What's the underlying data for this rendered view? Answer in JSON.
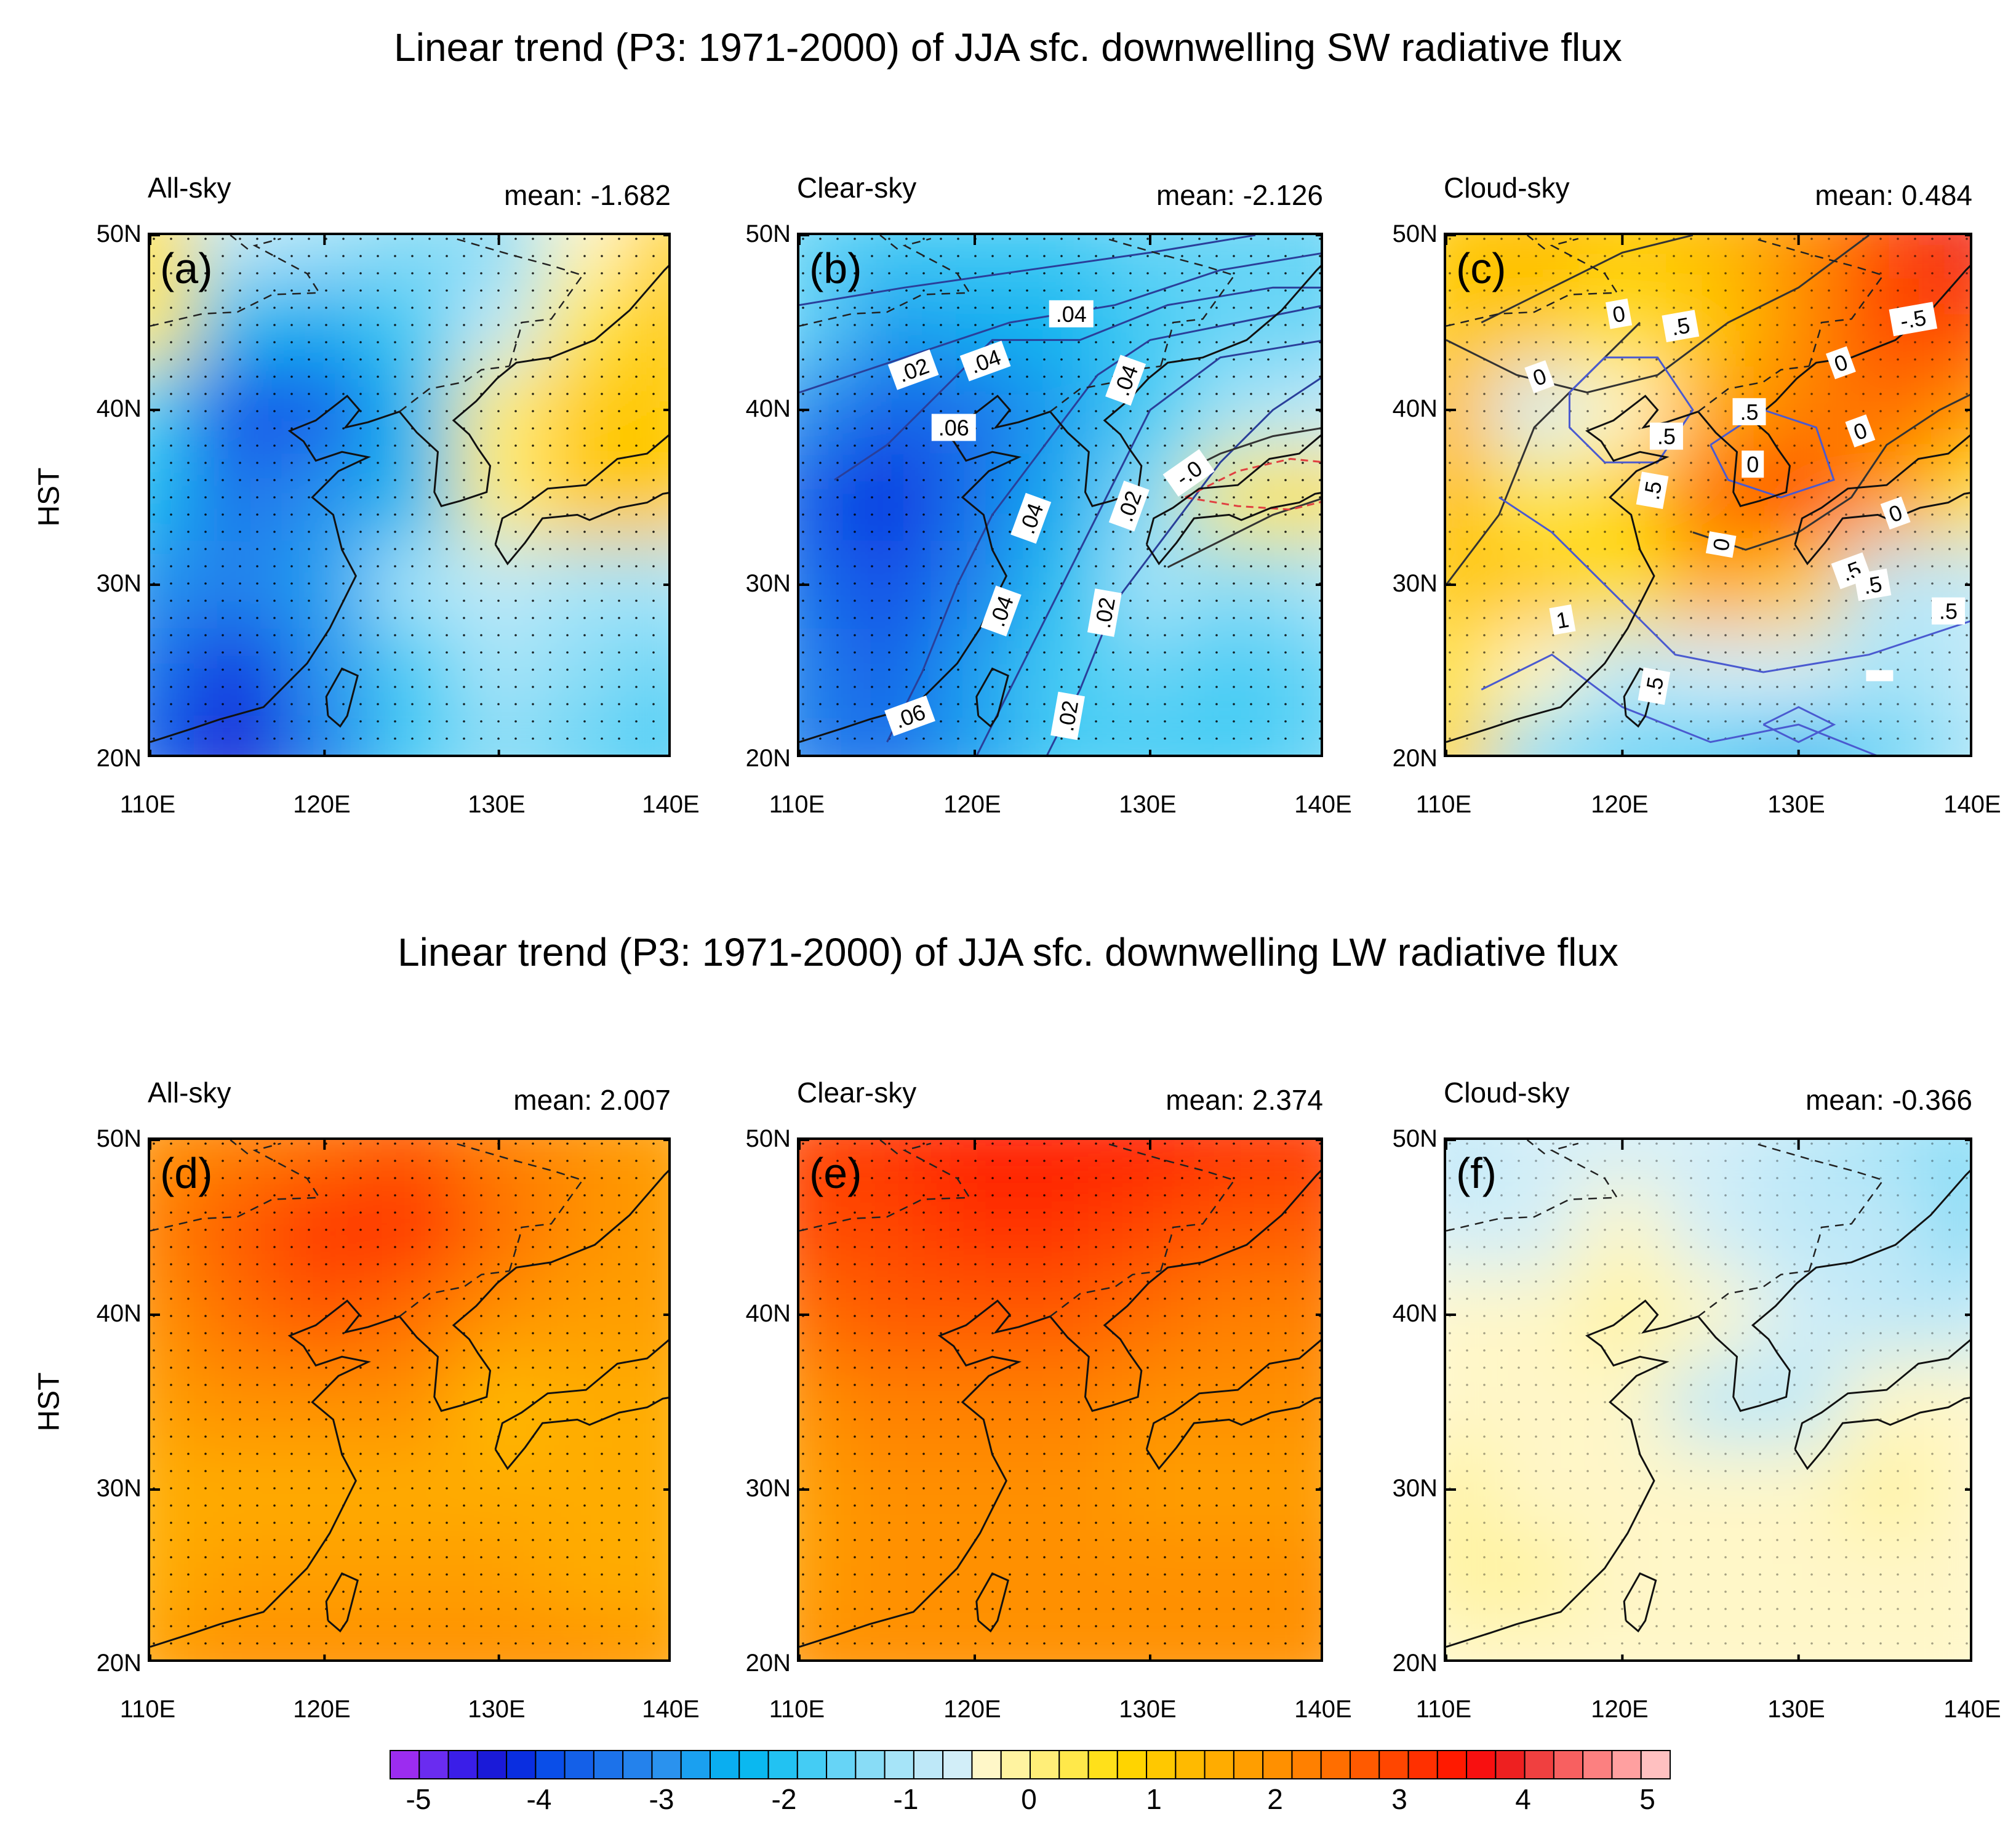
{
  "titles": {
    "sw": "Linear trend (P3: 1971-2000) of JJA sfc. downwelling SW radiative flux",
    "lw": "Linear trend (P3: 1971-2000) of JJA sfc. downwelling LW radiative flux"
  },
  "y_axis_title": "HST",
  "y_ticks": [
    "50N",
    "40N",
    "30N",
    "20N"
  ],
  "x_ticks": [
    "110E",
    "120E",
    "130E",
    "140E"
  ],
  "panels": [
    {
      "id": "a",
      "letter": "(a)",
      "name": "All-sky",
      "mean": "mean: -1.682"
    },
    {
      "id": "b",
      "letter": "(b)",
      "name": "Clear-sky",
      "mean": "mean: -2.126"
    },
    {
      "id": "c",
      "letter": "(c)",
      "name": "Cloud-sky",
      "mean": "mean: 0.484"
    },
    {
      "id": "d",
      "letter": "(d)",
      "name": "All-sky",
      "mean": "mean: 2.007"
    },
    {
      "id": "e",
      "letter": "(e)",
      "name": "Clear-sky",
      "mean": "mean: 2.374"
    },
    {
      "id": "f",
      "letter": "(f)",
      "name": "Cloud-sky",
      "mean": "mean: -0.366"
    }
  ],
  "contour_labels": {
    "b": [
      ".04",
      ".02",
      ".04",
      ".04",
      ".06",
      ".04",
      ".02",
      "-.0",
      ".04",
      ".02",
      ".06",
      ".02"
    ],
    "c": [
      "0",
      ".5",
      "-.5",
      "0",
      "0",
      ".5",
      "0",
      ".5",
      "0",
      ".5",
      "0",
      "0",
      ".5",
      ".5",
      ".5",
      "1",
      ".5"
    ]
  },
  "colorbar": {
    "labels": [
      "-5",
      "-4",
      "-3",
      "-2",
      "-1",
      "0",
      "1",
      "2",
      "3",
      "4",
      "5"
    ],
    "colors": [
      "#9c2cf0",
      "#6a2cf0",
      "#3a1ee8",
      "#1a1ad8",
      "#0a2ee0",
      "#0a4ee8",
      "#1460e8",
      "#1c72ea",
      "#2482ec",
      "#2a92ee",
      "#1aa0f0",
      "#0aaef0",
      "#0ab8f0",
      "#22c2f2",
      "#44ccf4",
      "#66d4f6",
      "#88dcf6",
      "#a6e4f8",
      "#bee8f8",
      "#d2eef8",
      "#fff7c8",
      "#fff3a0",
      "#ffee78",
      "#ffe84a",
      "#ffe01a",
      "#ffd400",
      "#ffc800",
      "#ffba00",
      "#ffac00",
      "#ff9e00",
      "#ff9000",
      "#ff8000",
      "#ff6e00",
      "#ff5a00",
      "#ff4600",
      "#ff3000",
      "#ff1a00",
      "#f81010",
      "#ee2020",
      "#f04040",
      "#f86060",
      "#fc8080",
      "#ffa0a0",
      "#ffc0c0"
    ]
  },
  "chart_data": [
    {
      "type": "heatmap",
      "panel": "a",
      "title": "All-sky",
      "mean": -1.682,
      "xlabel": "",
      "ylabel": "HST",
      "xlim": [
        110,
        140
      ],
      "ylim": [
        20,
        50
      ],
      "x": [
        110,
        115,
        120,
        125,
        130,
        135,
        140
      ],
      "y": [
        50,
        45,
        40,
        35,
        30,
        25,
        20
      ],
      "z": [
        [
          0.6,
          -0.9,
          -1.2,
          -1.4,
          -1.3,
          -0.3,
          0.9
        ],
        [
          0.3,
          -2.4,
          -2.7,
          -2.0,
          -0.8,
          0.4,
          1.0
        ],
        [
          -1.8,
          -4.1,
          -3.8,
          -2.4,
          0.2,
          1.2,
          1.1
        ],
        [
          -2.4,
          -3.6,
          -3.2,
          -2.3,
          0.2,
          1.0,
          1.0
        ],
        [
          -3.2,
          -3.3,
          -3.0,
          -1.2,
          -0.8,
          -1.2,
          -1.2
        ],
        [
          -3.6,
          -4.4,
          -3.2,
          -1.9,
          -1.2,
          -1.4,
          -1.6
        ],
        [
          -3.8,
          -4.6,
          -3.5,
          -2.0,
          -1.4,
          -1.6,
          -1.8
        ]
      ]
    },
    {
      "type": "heatmap",
      "panel": "b",
      "title": "Clear-sky",
      "mean": -2.126,
      "xlabel": "",
      "ylabel": "",
      "xlim": [
        110,
        140
      ],
      "ylim": [
        20,
        50
      ],
      "x": [
        110,
        115,
        120,
        125,
        130,
        135,
        140
      ],
      "y": [
        50,
        45,
        40,
        35,
        30,
        25,
        20
      ],
      "z": [
        [
          -1.6,
          -1.8,
          -1.9,
          -1.8,
          -1.7,
          -1.7,
          -1.6
        ],
        [
          -1.6,
          -2.8,
          -2.6,
          -2.3,
          -1.8,
          -1.7,
          -1.6
        ],
        [
          -3.2,
          -4.0,
          -3.6,
          -2.9,
          -2.0,
          -1.2,
          -1.0
        ],
        [
          -3.8,
          -4.4,
          -3.6,
          -2.6,
          -1.4,
          0.4,
          0.6
        ],
        [
          -3.6,
          -4.1,
          -3.3,
          -2.1,
          -1.2,
          -1.4,
          -1.2
        ],
        [
          -3.5,
          -3.8,
          -3.0,
          -2.0,
          -1.6,
          -1.8,
          -1.6
        ],
        [
          -3.3,
          -3.6,
          -2.8,
          -1.9,
          -1.8,
          -1.8,
          -1.7
        ]
      ]
    },
    {
      "type": "heatmap",
      "panel": "c",
      "title": "Cloud-sky",
      "mean": 0.484,
      "xlabel": "",
      "ylabel": "",
      "xlim": [
        110,
        140
      ],
      "ylim": [
        20,
        50
      ],
      "x": [
        110,
        115,
        120,
        125,
        130,
        135,
        140
      ],
      "y": [
        50,
        45,
        40,
        35,
        30,
        25,
        20
      ],
      "z": [
        [
          1.2,
          1.3,
          1.1,
          1.4,
          2.2,
          3.0,
          4.0
        ],
        [
          1.0,
          1.0,
          0.6,
          1.2,
          2.0,
          3.0,
          3.2
        ],
        [
          1.4,
          -0.6,
          -0.3,
          1.6,
          2.4,
          2.6,
          2.0
        ],
        [
          1.4,
          0.3,
          0.8,
          2.6,
          3.2,
          1.8,
          0.6
        ],
        [
          1.2,
          1.0,
          0.6,
          1.6,
          1.2,
          -0.8,
          -0.8
        ],
        [
          0.6,
          -0.4,
          -0.8,
          -0.6,
          -0.6,
          -1.2,
          -1.0
        ],
        [
          0.8,
          -1.4,
          -1.6,
          -2.0,
          -2.4,
          -1.6,
          -1.2
        ]
      ]
    },
    {
      "type": "heatmap",
      "panel": "d",
      "title": "All-sky",
      "mean": 2.007,
      "xlabel": "",
      "ylabel": "HST",
      "xlim": [
        110,
        140
      ],
      "ylim": [
        20,
        50
      ],
      "x": [
        110,
        115,
        120,
        125,
        130,
        135,
        140
      ],
      "y": [
        50,
        45,
        40,
        35,
        30,
        25,
        20
      ],
      "z": [
        [
          2.0,
          2.4,
          2.6,
          2.8,
          2.4,
          2.0,
          1.8
        ],
        [
          2.4,
          2.9,
          3.4,
          3.4,
          2.6,
          2.0,
          1.8
        ],
        [
          2.2,
          2.6,
          2.8,
          2.6,
          2.2,
          1.9,
          1.8
        ],
        [
          1.9,
          2.1,
          2.1,
          2.0,
          1.4,
          1.6,
          1.7
        ],
        [
          1.6,
          1.6,
          1.7,
          1.6,
          1.5,
          1.6,
          1.6
        ],
        [
          1.6,
          1.8,
          1.9,
          1.8,
          1.8,
          1.7,
          1.7
        ],
        [
          1.8,
          2.0,
          2.1,
          2.0,
          2.0,
          2.0,
          1.9
        ]
      ]
    },
    {
      "type": "heatmap",
      "panel": "e",
      "title": "Clear-sky",
      "mean": 2.374,
      "xlabel": "",
      "ylabel": "",
      "xlim": [
        110,
        140
      ],
      "ylim": [
        20,
        50
      ],
      "x": [
        110,
        115,
        120,
        125,
        130,
        135,
        140
      ],
      "y": [
        50,
        45,
        40,
        35,
        30,
        25,
        20
      ],
      "z": [
        [
          3.2,
          3.4,
          3.5,
          3.6,
          3.5,
          3.4,
          3.3
        ],
        [
          3.0,
          3.2,
          3.3,
          3.3,
          3.1,
          2.9,
          2.8
        ],
        [
          2.6,
          2.8,
          2.9,
          2.8,
          2.6,
          2.4,
          2.3
        ],
        [
          2.2,
          2.3,
          2.4,
          2.3,
          2.1,
          2.0,
          2.0
        ],
        [
          1.9,
          2.0,
          2.1,
          2.0,
          1.9,
          1.9,
          1.9
        ],
        [
          1.9,
          2.1,
          2.1,
          2.0,
          2.0,
          2.0,
          2.0
        ],
        [
          2.0,
          2.2,
          2.2,
          2.1,
          2.1,
          2.1,
          2.0
        ]
      ]
    },
    {
      "type": "heatmap",
      "panel": "f",
      "title": "Cloud-sky",
      "mean": -0.366,
      "xlabel": "",
      "ylabel": "",
      "xlim": [
        110,
        140
      ],
      "ylim": [
        20,
        50
      ],
      "x": [
        110,
        115,
        120,
        125,
        130,
        135,
        140
      ],
      "y": [
        50,
        45,
        40,
        35,
        30,
        25,
        20
      ],
      "z": [
        [
          -0.8,
          -0.7,
          -0.6,
          -0.7,
          -0.9,
          -1.2,
          -1.5
        ],
        [
          -0.6,
          -0.6,
          -0.5,
          -0.6,
          -0.8,
          -1.0,
          -1.3
        ],
        [
          -0.4,
          -0.4,
          -0.2,
          -0.5,
          -0.6,
          -0.8,
          -1.0
        ],
        [
          -0.3,
          -0.3,
          -0.4,
          -0.8,
          -0.9,
          -0.5,
          -0.4
        ],
        [
          -0.2,
          -0.3,
          -0.3,
          -0.4,
          -0.3,
          -0.1,
          -0.3
        ],
        [
          -0.2,
          -0.2,
          -0.3,
          -0.3,
          -0.3,
          -0.3,
          -0.3
        ],
        [
          -0.3,
          -0.3,
          -0.3,
          -0.3,
          -0.3,
          -0.3,
          -0.3
        ]
      ]
    }
  ]
}
